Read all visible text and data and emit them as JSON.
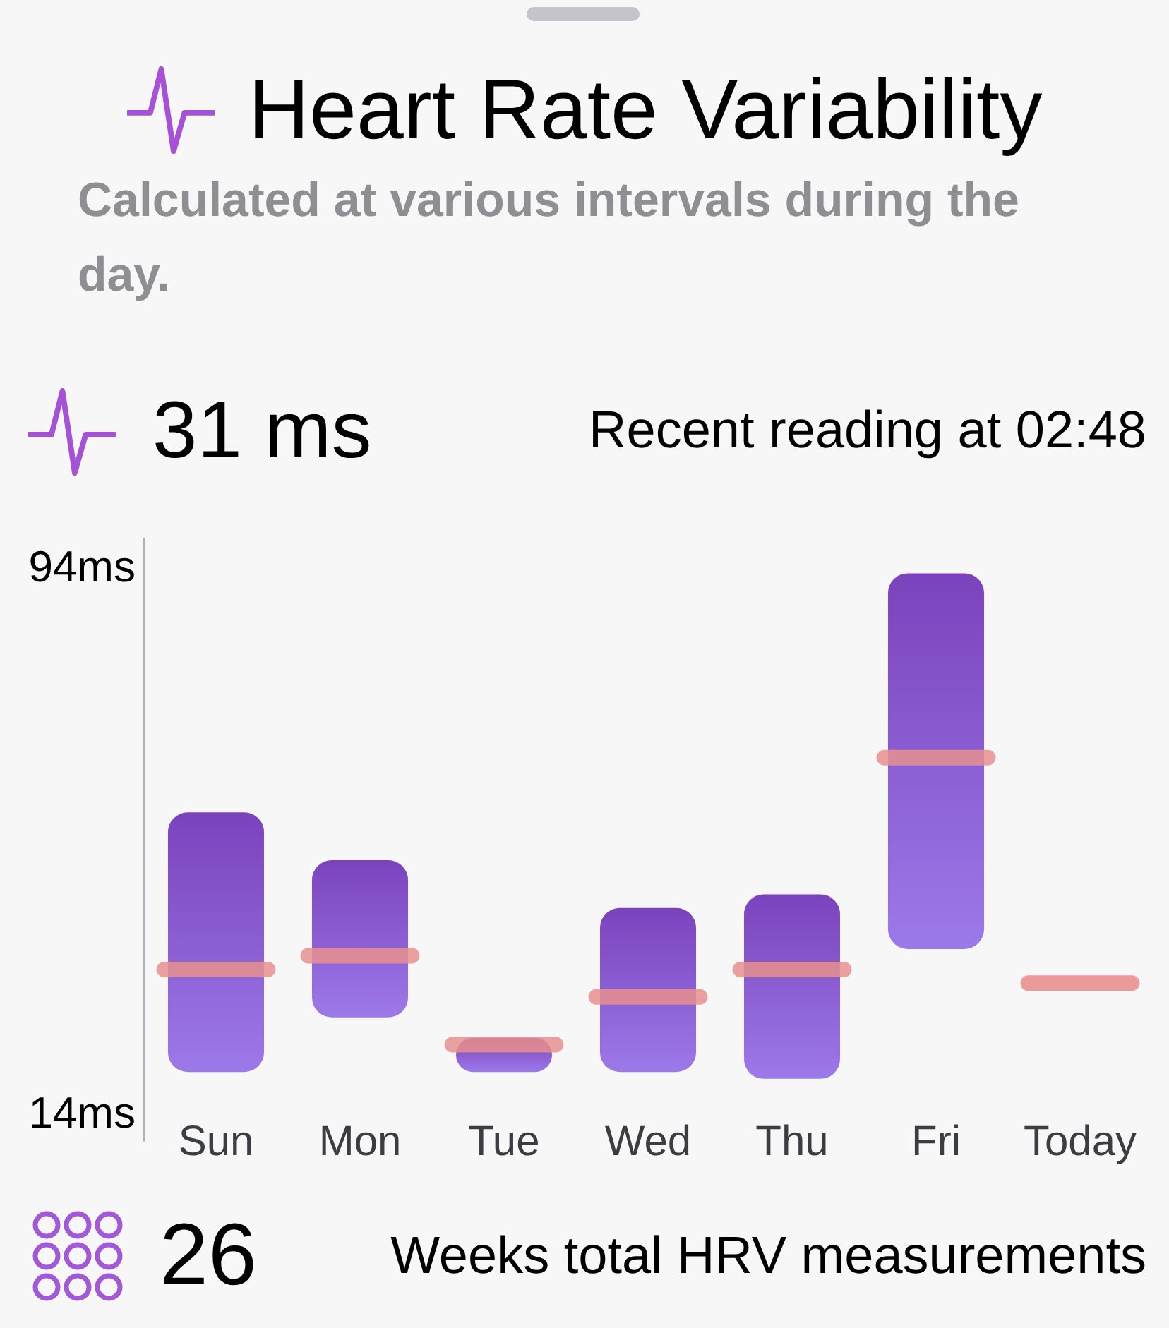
{
  "chart_data": {
    "type": "box",
    "title": "Heart Rate Variability",
    "subtitle": "Calculated at various intervals during the day.",
    "categories": [
      "Sun",
      "Mon",
      "Tue",
      "Wed",
      "Thu",
      "Fri",
      "Today"
    ],
    "series": [
      {
        "colors": [
          "#8a5cd2",
          "#8a5cd2",
          "#8a5cd2",
          "#8a5cd2",
          "#8a5cd2",
          "#8a5cd2",
          "#e8908e"
        ],
        "boxes": [
          {
            "low": 20,
            "q1": 20,
            "median": 35,
            "q3": 58,
            "high": 58
          },
          {
            "low": 28,
            "q1": 28,
            "median": 37,
            "q3": 51,
            "high": 51
          },
          {
            "low": 20,
            "q1": 20,
            "median": 24,
            "q3": 25,
            "high": 25
          },
          {
            "low": 20,
            "q1": 20,
            "median": 31,
            "q3": 44,
            "high": 44
          },
          {
            "low": 19,
            "q1": 19,
            "median": 35,
            "q3": 46,
            "high": 46
          },
          {
            "low": 38,
            "q1": 38,
            "median": 66,
            "q3": 93,
            "high": 93
          },
          {
            "low": 33,
            "q1": 33,
            "median": 33,
            "q3": 33,
            "high": 33
          }
        ]
      }
    ],
    "ylim": [
      10,
      98
    ],
    "yticks": [
      {
        "value": 94,
        "label": "94ms"
      },
      {
        "value": 14,
        "label": "14ms"
      }
    ],
    "annotations": [
      "31 ms",
      "Recent reading at 02:48",
      "26",
      "Weeks total HRV measurements"
    ]
  }
}
